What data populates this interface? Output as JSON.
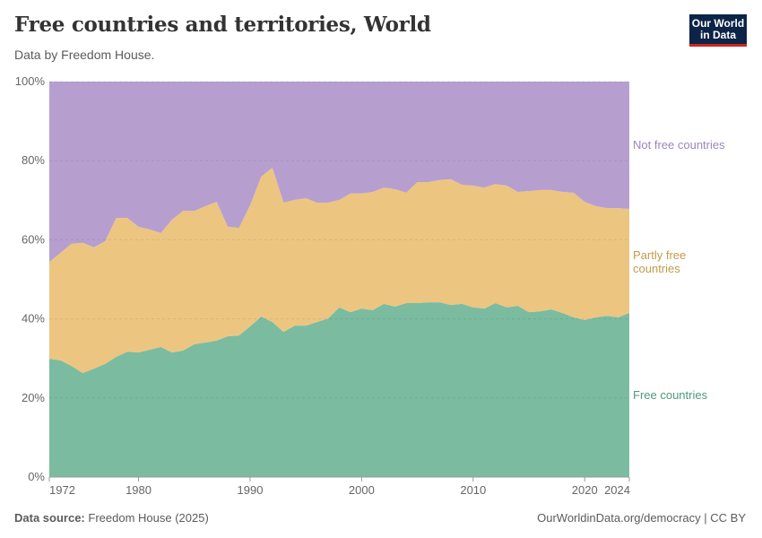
{
  "title": "Free countries and territories, World",
  "subtitle": "Data by Freedom House.",
  "logo_text": "Our World in Data",
  "footer": {
    "source_label": "Data source:",
    "source": "Freedom House (2025)",
    "link": "OurWorldinData.org/democracy | CC BY"
  },
  "chart_data": {
    "type": "area",
    "stacked": "100%",
    "x_ticks": [
      "1972",
      "1980",
      "1990",
      "2000",
      "2010",
      "2020",
      "2024"
    ],
    "y_ticks": [
      "0%",
      "20%",
      "40%",
      "60%",
      "80%",
      "100%"
    ],
    "ylim": [
      0,
      100
    ],
    "grid": "horizontal dashed",
    "legend": "right, inline labels",
    "x": [
      1972,
      1973,
      1974,
      1975,
      1976,
      1977,
      1978,
      1979,
      1980,
      1981,
      1982,
      1983,
      1984,
      1985,
      1986,
      1987,
      1988,
      1989,
      1990,
      1991,
      1992,
      1993,
      1994,
      1995,
      1996,
      1997,
      1998,
      1999,
      2000,
      2001,
      2002,
      2003,
      2004,
      2005,
      2006,
      2007,
      2008,
      2009,
      2010,
      2011,
      2012,
      2013,
      2014,
      2015,
      2016,
      2017,
      2018,
      2019,
      2020,
      2021,
      2022,
      2023,
      2024
    ],
    "series": [
      {
        "name": "Free countries",
        "color": "#7bbca0",
        "label_color": "#4c9a77",
        "values": [
          29.9,
          29.5,
          28.1,
          26.3,
          27.4,
          28.6,
          30.4,
          31.7,
          31.5,
          32.2,
          32.9,
          31.5,
          32.0,
          33.6,
          34.0,
          34.5,
          35.6,
          35.8,
          38.1,
          40.6,
          39.2,
          36.7,
          38.3,
          38.3,
          39.2,
          40.1,
          42.9,
          41.7,
          42.6,
          42.2,
          43.8,
          43.1,
          44.0,
          44.0,
          44.2,
          44.2,
          43.5,
          43.8,
          42.9,
          42.6,
          44.0,
          42.9,
          43.3,
          41.7,
          41.9,
          42.4,
          41.5,
          40.4,
          39.7,
          40.4,
          40.8,
          40.4,
          41.5
        ]
      },
      {
        "name": "Partly free countries",
        "color": "#ecc581",
        "label_color": "#c39a4c",
        "values": [
          24.5,
          27.2,
          30.9,
          32.9,
          30.7,
          31.0,
          35.1,
          33.8,
          31.8,
          30.4,
          28.8,
          33.6,
          35.3,
          33.7,
          34.5,
          35.1,
          27.7,
          27.2,
          30.6,
          35.4,
          39.0,
          32.7,
          31.8,
          32.2,
          30.2,
          29.3,
          27.2,
          30.0,
          29.1,
          29.9,
          29.4,
          29.7,
          27.9,
          30.6,
          30.4,
          30.9,
          31.8,
          30.1,
          30.8,
          30.6,
          30.1,
          30.8,
          28.8,
          30.6,
          30.7,
          30.2,
          30.6,
          31.5,
          29.9,
          28.1,
          27.2,
          27.6,
          26.3
        ]
      },
      {
        "name": "Not free countries",
        "color": "#b69fce",
        "label_color": "#9d86bb",
        "values": [
          45.6,
          43.3,
          41.0,
          40.8,
          41.9,
          40.4,
          34.5,
          34.5,
          36.7,
          37.4,
          38.3,
          34.9,
          32.7,
          32.7,
          31.5,
          30.4,
          36.7,
          37.0,
          31.3,
          24.0,
          21.8,
          30.6,
          29.9,
          29.5,
          30.6,
          30.6,
          29.9,
          28.3,
          28.3,
          27.9,
          26.8,
          27.2,
          28.1,
          25.4,
          25.4,
          24.9,
          24.7,
          26.1,
          26.3,
          26.8,
          25.9,
          26.3,
          27.9,
          27.7,
          27.4,
          27.4,
          27.9,
          28.1,
          30.4,
          31.5,
          32.0,
          32.0,
          32.2
        ]
      }
    ]
  }
}
